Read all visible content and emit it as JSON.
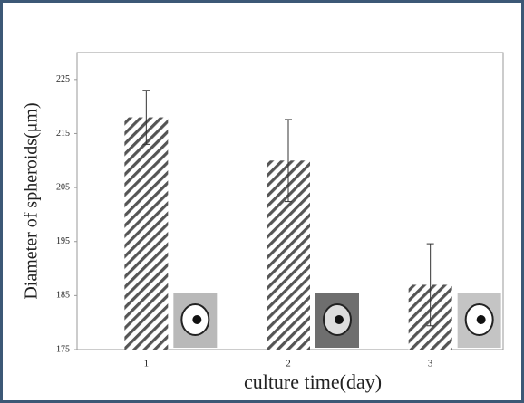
{
  "chart_data": {
    "type": "bar",
    "x_label": "culture time(day)",
    "y_label": "Diameter of spheroids(μm)",
    "categories": [
      "1",
      "2",
      "3"
    ],
    "values": [
      218,
      210,
      187
    ],
    "errors": [
      5,
      7.6,
      7.6
    ],
    "color": "#555555",
    "ylim": [
      175,
      230
    ],
    "yticks": [
      175,
      185,
      195,
      205,
      215,
      225
    ]
  }
}
